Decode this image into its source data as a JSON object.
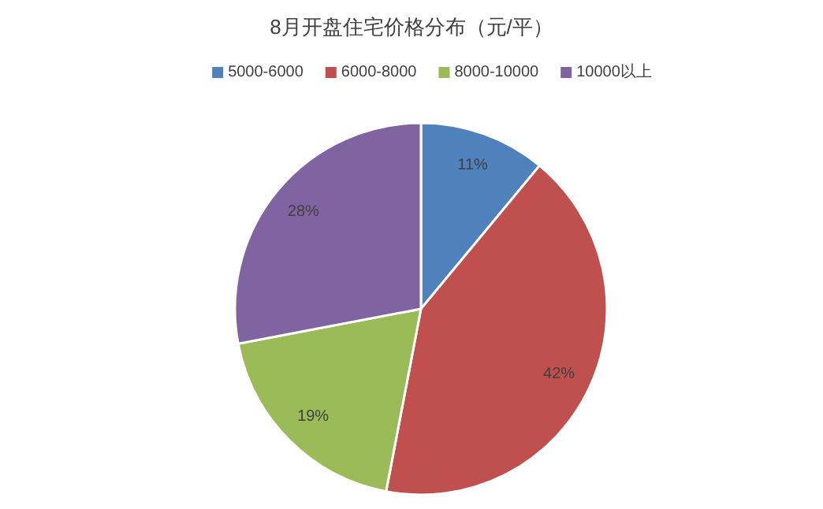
{
  "chart_data": {
    "type": "pie",
    "title": "8月开盘住宅价格分布（元/平）",
    "categories": [
      "5000-6000",
      "6000-8000",
      "8000-10000",
      "10000以上"
    ],
    "values": [
      11,
      42,
      19,
      28
    ],
    "colors": [
      "#4f81bd",
      "#c0504d",
      "#9bbb59",
      "#8064a2"
    ],
    "value_labels": [
      "11%",
      "42%",
      "19%",
      "28%"
    ],
    "legend": "top"
  }
}
